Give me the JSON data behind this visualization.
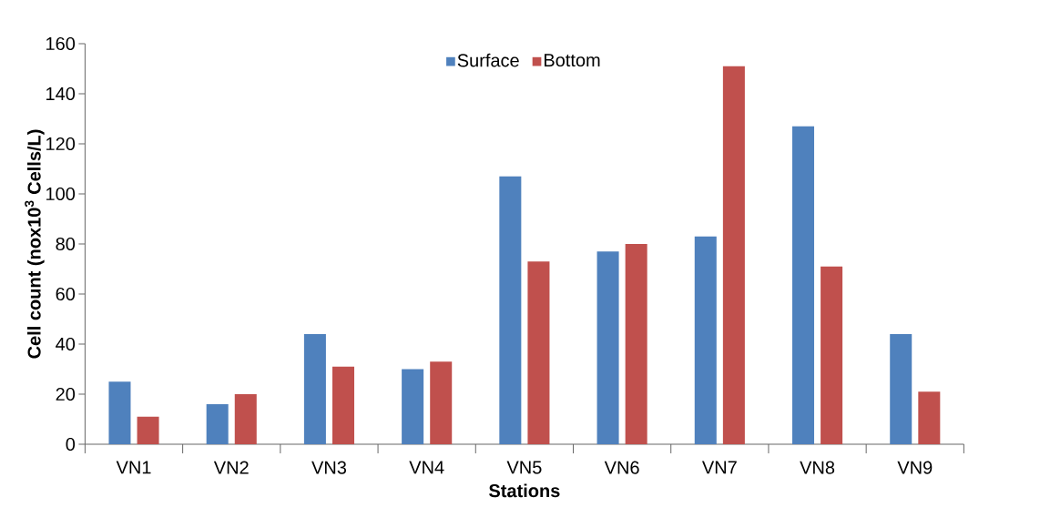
{
  "chart_data": {
    "type": "bar",
    "xlabel": "Stations",
    "ylabel": "Cell count (nox10$^{3}$ Cells/L)",
    "categories": [
      "VN1",
      "VN2",
      "VN3",
      "VN4",
      "VN5",
      "VN6",
      "VN7",
      "VN8",
      "VN9"
    ],
    "series": [
      {
        "name": "Surface",
        "color": "#4f81bd",
        "values": [
          25,
          16,
          44,
          30,
          107,
          77,
          83,
          127,
          44
        ]
      },
      {
        "name": "Bottom",
        "color": "#c0504d",
        "values": [
          11,
          20,
          31,
          33,
          73,
          80,
          151,
          71,
          21
        ]
      }
    ],
    "ylim": [
      0,
      160
    ],
    "yticks": [
      0,
      20,
      40,
      60,
      80,
      100,
      120,
      140,
      160
    ],
    "grid": false,
    "legend": "top"
  }
}
